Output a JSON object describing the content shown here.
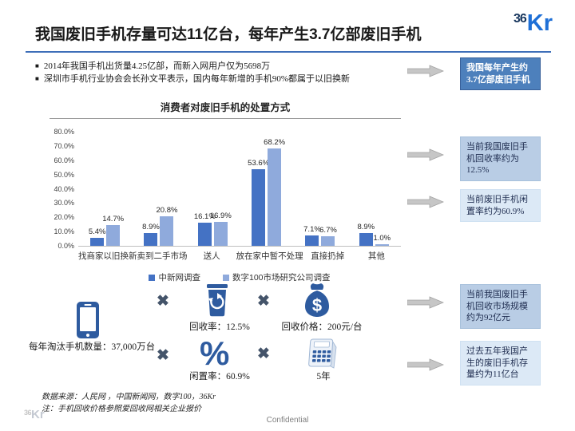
{
  "header": {
    "title": "我国废旧手机存量可达11亿台，每年产生3.7亿部废旧手机",
    "logo_part1": "36",
    "logo_part2": "Kr",
    "bullet_marker": "■",
    "bullets": [
      "2014年我国手机出货量4.25亿部，而新入网用户仅为5698万",
      "深圳市手机行业协会会长孙文平表示，国内每年新增的手机90%都属于以旧换新"
    ]
  },
  "chart_data": {
    "type": "bar",
    "title": "消费者对废旧手机的处置方式",
    "categories": [
      "找商家以旧换新",
      "卖到二手市场",
      "送人",
      "放在家中暂不处理",
      "直接扔掉",
      "其他"
    ],
    "series": [
      {
        "name": "中新网调查",
        "color": "#4472C4",
        "values": [
          5.4,
          8.9,
          16.1,
          53.6,
          7.1,
          8.9
        ]
      },
      {
        "name": "数字100市场研究公司调查",
        "color": "#8FAADC",
        "values": [
          14.7,
          20.8,
          16.9,
          68.2,
          6.7,
          1.0
        ]
      }
    ],
    "xlabel": "",
    "ylabel": "",
    "ylim": [
      0,
      80
    ],
    "yticks": [
      "80.0%",
      "70.0%",
      "60.0%",
      "50.0%",
      "40.0%",
      "30.0%",
      "20.0%",
      "10.0%",
      "0.0%"
    ],
    "grid": false,
    "legend_position": "bottom",
    "data_labels": true
  },
  "callouts": [
    {
      "text": "我国每年产生约3.7亿部废旧手机"
    },
    {
      "text": "当前我国废旧手机回收率约为12.5%"
    },
    {
      "text": "当前废旧手机闲置率约为60.9%"
    },
    {
      "text": "当前我国废旧手机回收市场规模约为92亿元"
    },
    {
      "text": "过去五年我国产生的废旧手机存量约为11亿台"
    }
  ],
  "equation": {
    "phone_label": "每年淘汰手机数量：37,000万台",
    "recycle_label": "回收率：12.5%",
    "price_label": "回收价格：200元/台",
    "idle_label": "闲置率：60.9%",
    "years_label": "5年",
    "percent_symbol": "%",
    "times_symbol": "✖"
  },
  "footer": {
    "source": "数据来源：人民网 ，中国新闻网，数字100，36Kr",
    "note": "注：手机回收价格参照爱回收网相关企业报价",
    "confidential": "Confidential",
    "logo_part1": "36",
    "logo_part2": "Kr"
  },
  "colors": {
    "header_rule": "#3D6EB8",
    "logo_navy": "#17365D",
    "logo_blue": "#1E6FD6",
    "callout_solid_bg": "#4D80BC",
    "callout_medium_bg": "#B9CDE5",
    "callout_pale_bg": "#DCE9F6",
    "icon_blue": "#2E5B9F",
    "times_color": "#44546A",
    "arrow_gray": "#C6C6C6"
  }
}
